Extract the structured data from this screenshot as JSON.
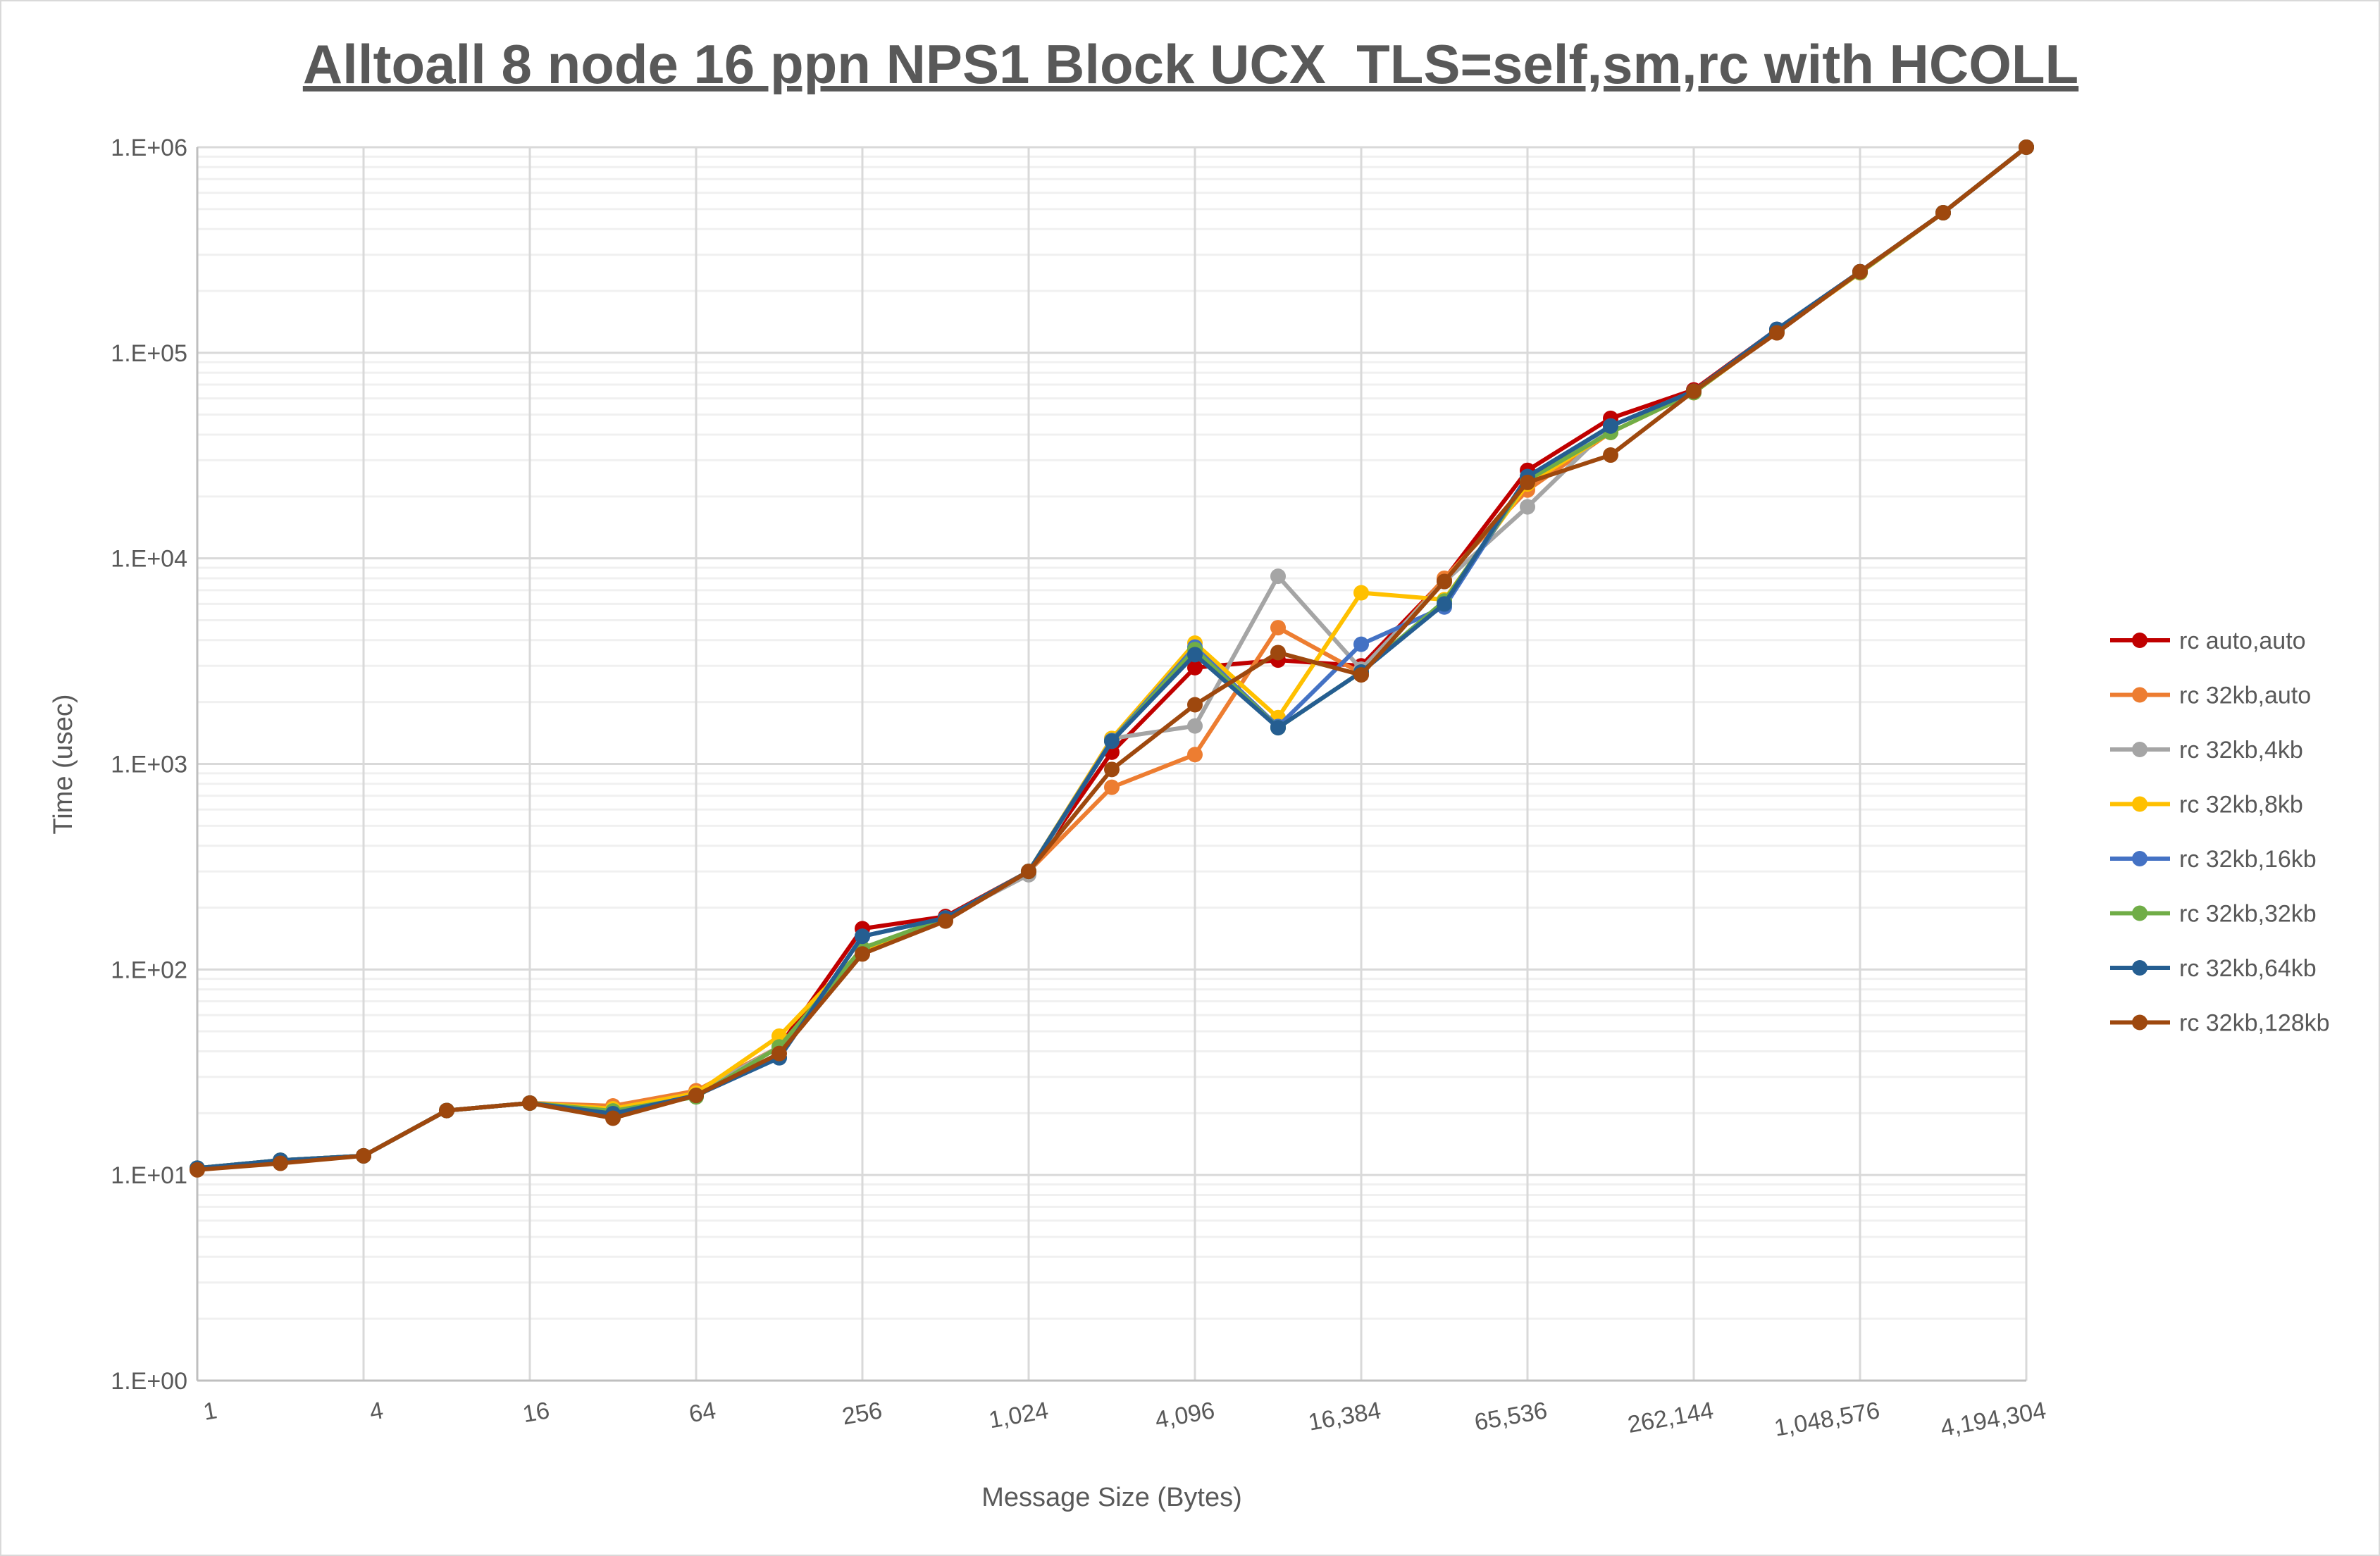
{
  "chart_data": {
    "type": "line",
    "title": "Alltoall 8 node 16 ppn NPS1 Block UCX_TLS=self,sm,rc with HCOLL",
    "xlabel": "Message Size (Bytes)",
    "ylabel": "Time (usec)",
    "x_scale": "log2",
    "y_scale": "log10",
    "ylim": [
      1,
      1000000
    ],
    "grid": true,
    "legend_position": "right",
    "x": [
      1,
      2,
      4,
      8,
      16,
      32,
      64,
      128,
      256,
      512,
      1024,
      2048,
      4096,
      8192,
      16384,
      32768,
      65536,
      131072,
      262144,
      524288,
      1048576,
      2097152,
      4194304
    ],
    "x_tick_labels": [
      "1",
      "4",
      "16",
      "64",
      "256",
      "1,024",
      "4,096",
      "16,384",
      "65,536",
      "262,144",
      "1,048,576",
      "4,194,304"
    ],
    "y_tick_labels": [
      "1.E+00",
      "1.E+01",
      "1.E+02",
      "1.E+03",
      "1.E+04",
      "1.E+05",
      "1.E+06"
    ],
    "series": [
      {
        "name": "rc auto,auto",
        "color": "#C00000",
        "values": [
          10.8,
          11.8,
          12.4,
          20.6,
          22.4,
          21.5,
          25,
          42,
          158,
          181,
          300,
          1140,
          2940,
          3200,
          3000,
          7900,
          26800,
          48000,
          66000,
          130000,
          248000,
          480000,
          1000000
        ]
      },
      {
        "name": "rc 32kb,auto",
        "color": "#ED7D31",
        "values": [
          10.8,
          11.8,
          12.4,
          20.6,
          22.4,
          21.7,
          25.7,
          42,
          125,
          178,
          300,
          770,
          1110,
          4600,
          2760,
          8000,
          21500,
          41000,
          64000,
          127000,
          245000,
          480000,
          1000000
        ]
      },
      {
        "name": "rc 32kb,4kb",
        "color": "#A5A5A5",
        "values": [
          10.8,
          11.8,
          12.4,
          20.6,
          22.4,
          21,
          25,
          42,
          125,
          178,
          289,
          1330,
          1530,
          8180,
          2890,
          7700,
          17800,
          44000,
          65000,
          130000,
          248000,
          480000,
          1000000
        ]
      },
      {
        "name": "rc 32kb,8kb",
        "color": "#FFC000",
        "values": [
          10.8,
          11.8,
          12.4,
          20.6,
          22.4,
          21,
          25,
          47.4,
          125,
          178,
          300,
          1330,
          3870,
          1680,
          6800,
          6300,
          23000,
          41000,
          64000,
          127000,
          245000,
          480000,
          1000000
        ]
      },
      {
        "name": "rc 32kb,16kb",
        "color": "#4472C4",
        "values": [
          10.8,
          11.8,
          12.4,
          20.6,
          22.4,
          19.9,
          24.4,
          37.2,
          145,
          178,
          300,
          1300,
          3700,
          1520,
          3820,
          5800,
          24500,
          44000,
          65000,
          130000,
          248000,
          480000,
          1000000
        ]
      },
      {
        "name": "rc 32kb,32kb",
        "color": "#70AD47",
        "values": [
          10.8,
          11.8,
          12.4,
          20.6,
          22.4,
          20.5,
          24,
          42,
          127,
          178,
          300,
          1290,
          3600,
          1500,
          2800,
          6200,
          24000,
          41000,
          64000,
          128000,
          246000,
          480000,
          1000000
        ]
      },
      {
        "name": "rc 32kb,64kb",
        "color": "#255E91",
        "values": [
          10.8,
          11.8,
          12.4,
          20.6,
          22.4,
          19.9,
          24.4,
          37.2,
          145,
          178,
          300,
          1290,
          3400,
          1500,
          2800,
          6000,
          25000,
          44000,
          65000,
          130000,
          248000,
          480000,
          1000000
        ]
      },
      {
        "name": "rc 32kb,128kb",
        "color": "#9E480E",
        "values": [
          10.6,
          11.4,
          12.4,
          20.6,
          22.4,
          18.9,
          24.4,
          39,
          119,
          172,
          300,
          940,
          1940,
          3480,
          2710,
          7720,
          23400,
          31800,
          65000,
          125000,
          248000,
          480000,
          1000000
        ]
      }
    ]
  }
}
